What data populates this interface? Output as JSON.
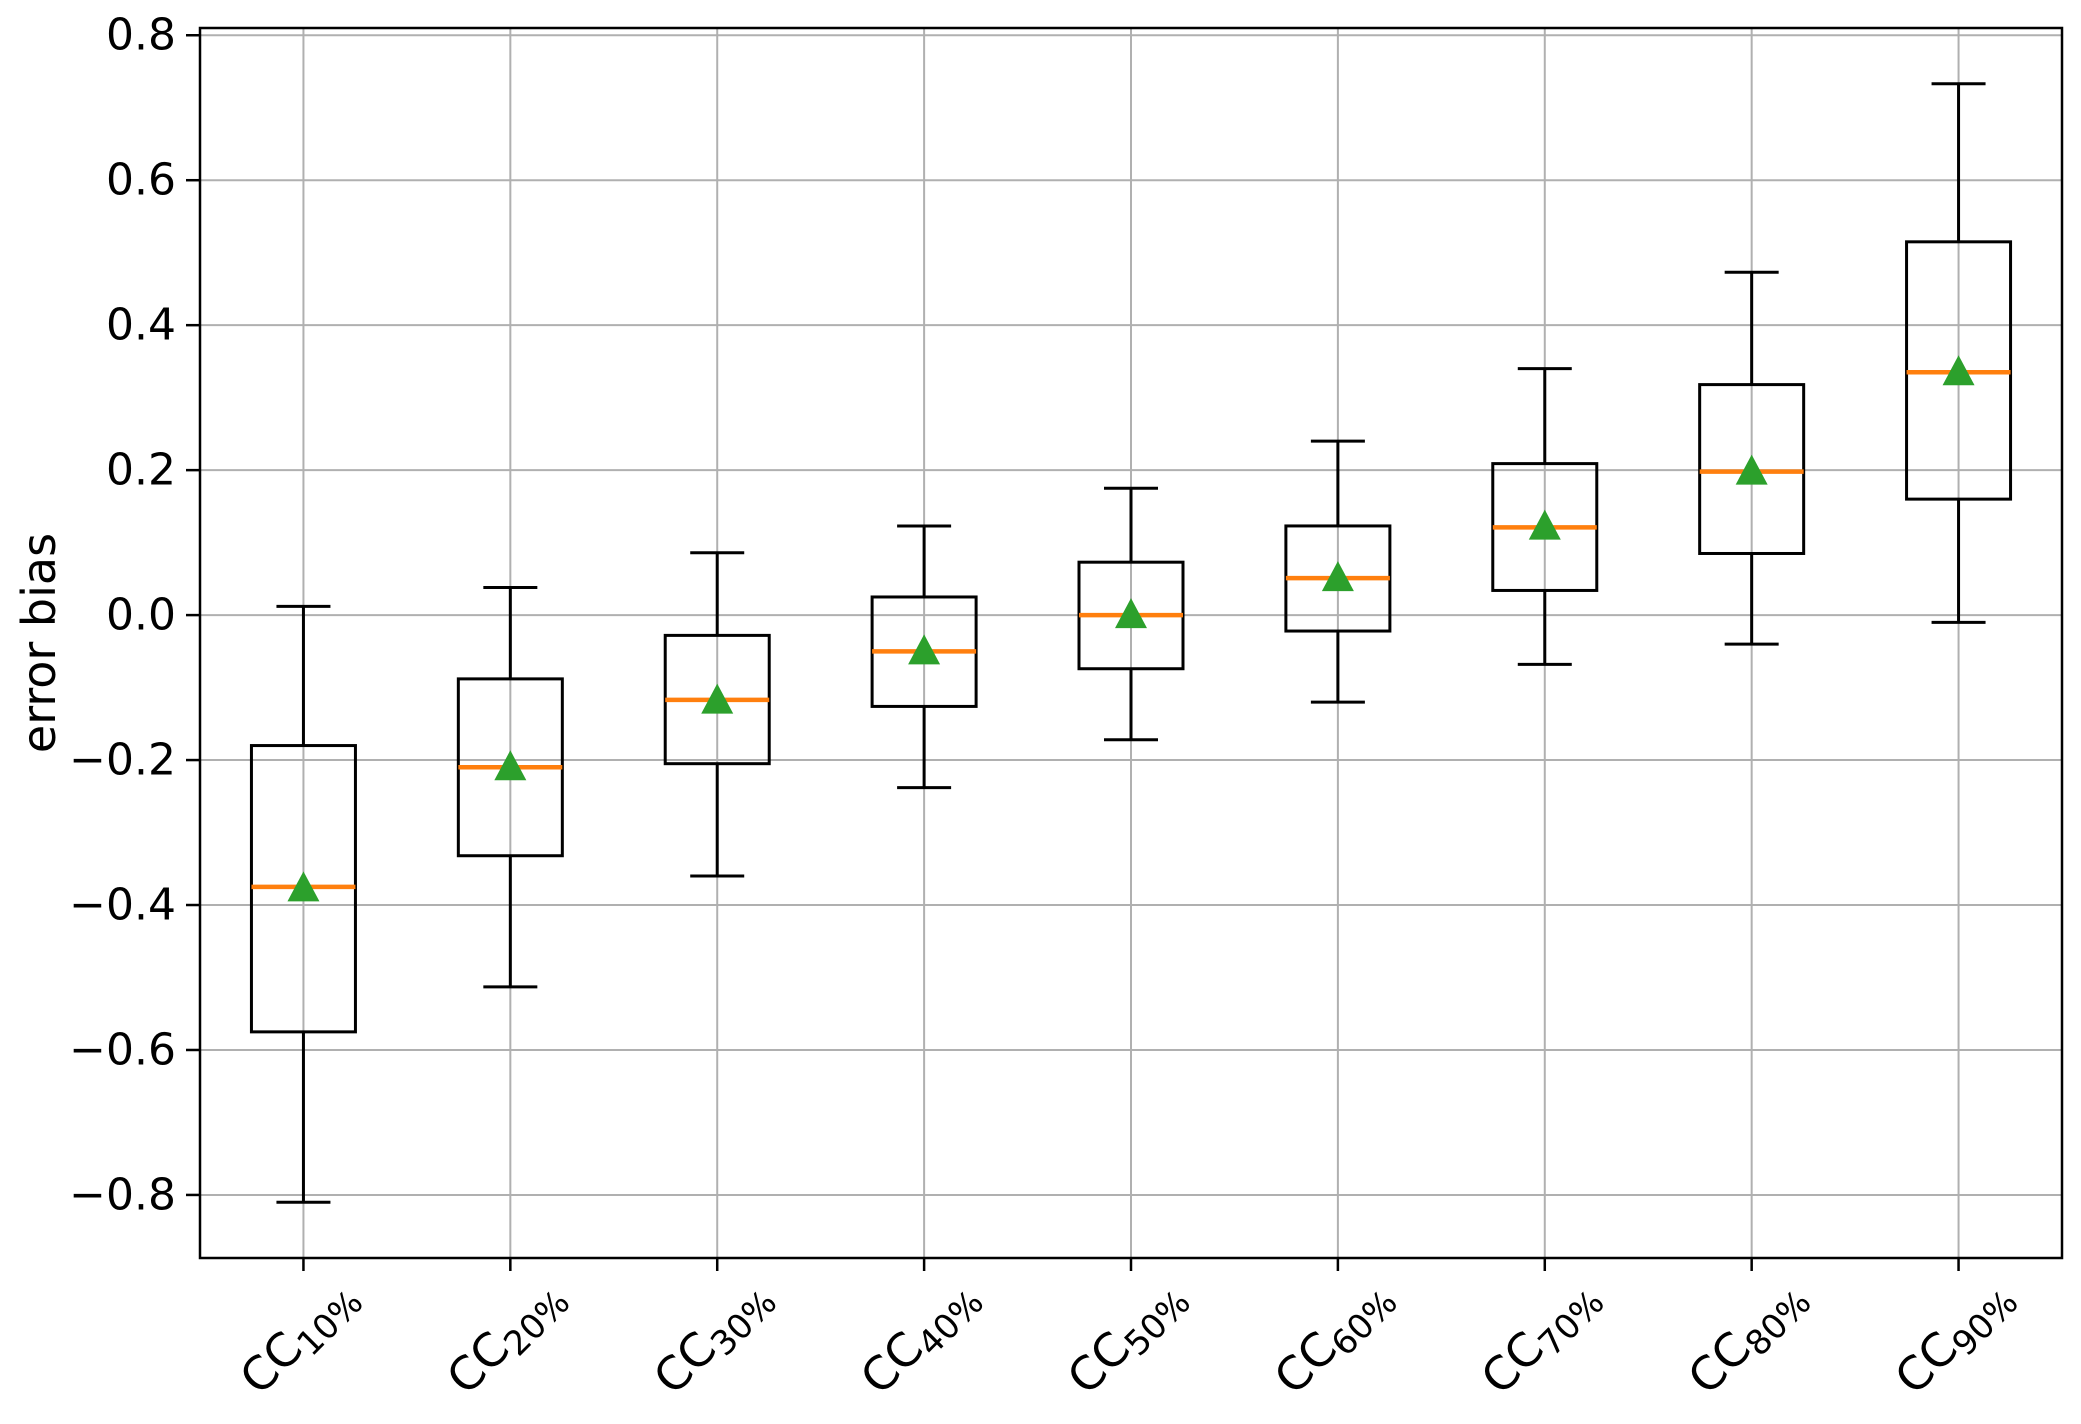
{
  "chart_data": {
    "type": "boxplot",
    "title": "",
    "xlabel": "",
    "ylabel": "error bias",
    "grid": true,
    "legend": "none",
    "ylim": [
      -0.887,
      0.81
    ],
    "yticks": [
      0.8,
      0.6,
      0.4,
      0.2,
      0.0,
      -0.2,
      -0.4,
      -0.6,
      -0.8
    ],
    "categories": [
      {
        "base": "CC",
        "sub": "10%"
      },
      {
        "base": "CC",
        "sub": "20%"
      },
      {
        "base": "CC",
        "sub": "30%"
      },
      {
        "base": "CC",
        "sub": "40%"
      },
      {
        "base": "CC",
        "sub": "50%"
      },
      {
        "base": "CC",
        "sub": "60%"
      },
      {
        "base": "CC",
        "sub": "70%"
      },
      {
        "base": "CC",
        "sub": "80%"
      },
      {
        "base": "CC",
        "sub": "90%"
      }
    ],
    "boxes": [
      {
        "whislo": -0.81,
        "q1": -0.575,
        "med": -0.375,
        "q3": -0.18,
        "whishi": 0.012,
        "mean": -0.377
      },
      {
        "whislo": -0.513,
        "q1": -0.332,
        "med": -0.21,
        "q3": -0.088,
        "whishi": 0.038,
        "mean": -0.21
      },
      {
        "whislo": -0.36,
        "q1": -0.205,
        "med": -0.117,
        "q3": -0.028,
        "whishi": 0.086,
        "mean": -0.118
      },
      {
        "whislo": -0.238,
        "q1": -0.126,
        "med": -0.05,
        "q3": 0.025,
        "whishi": 0.123,
        "mean": -0.05
      },
      {
        "whislo": -0.172,
        "q1": -0.074,
        "med": 0.0,
        "q3": 0.073,
        "whishi": 0.175,
        "mean": 0.0
      },
      {
        "whislo": -0.12,
        "q1": -0.022,
        "med": 0.051,
        "q3": 0.123,
        "whishi": 0.24,
        "mean": 0.051
      },
      {
        "whislo": -0.068,
        "q1": 0.034,
        "med": 0.121,
        "q3": 0.209,
        "whishi": 0.34,
        "mean": 0.122
      },
      {
        "whislo": -0.04,
        "q1": 0.085,
        "med": 0.198,
        "q3": 0.318,
        "whishi": 0.473,
        "mean": 0.198
      },
      {
        "whislo": -0.01,
        "q1": 0.16,
        "med": 0.335,
        "q3": 0.515,
        "whishi": 0.733,
        "mean": 0.335
      }
    ],
    "colors": {
      "box_line": "#000000",
      "median": "#ff7f0e",
      "mean_marker": "#2ca02c",
      "grid": "#b0b0b0",
      "frame": "#000000",
      "background": "#ffffff"
    }
  }
}
